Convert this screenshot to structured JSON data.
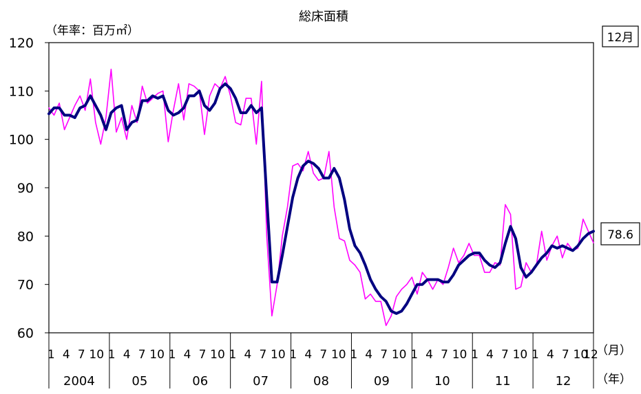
{
  "chart_data": {
    "type": "line",
    "title": "総床面積",
    "ylabel": "（年率：百万㎡）",
    "ylim": [
      60,
      120
    ],
    "y_ticks": [
      60,
      70,
      80,
      90,
      100,
      110,
      120
    ],
    "y_tick_labels": [
      "60",
      "70",
      "80",
      "90",
      "100",
      "110",
      "120"
    ],
    "month_ticks": [
      "1",
      "4",
      "7",
      "10"
    ],
    "final_month_label": "12",
    "month_axis_label": "（月）",
    "year_axis_label": "（年）",
    "years": [
      "2004",
      "05",
      "06",
      "07",
      "08",
      "09",
      "10",
      "11",
      "12"
    ],
    "month_badge": "12月",
    "last_value_label": "78.6",
    "series": [
      {
        "color": "#ff00ff",
        "values": [
          106.5,
          105.0,
          107.5,
          102.0,
          104.5,
          107.0,
          109.0,
          106.0,
          112.5,
          103.5,
          99.0,
          104.5,
          114.5,
          101.5,
          104.5,
          100.0,
          107.0,
          103.5,
          111.0,
          107.5,
          108.5,
          109.5,
          110.0,
          99.5,
          106.0,
          111.5,
          104.0,
          111.5,
          111.0,
          110.0,
          101.0,
          109.0,
          111.5,
          110.5,
          113.0,
          109.0,
          103.5,
          103.0,
          108.5,
          108.5,
          99.0,
          112.0,
          80.0,
          63.5,
          70.0,
          80.0,
          86.0,
          94.5,
          95.0,
          93.5,
          97.5,
          93.0,
          91.5,
          92.0,
          97.5,
          86.0,
          79.5,
          79.0,
          75.0,
          74.0,
          72.5,
          67.0,
          68.0,
          66.5,
          66.5,
          61.5,
          63.5,
          67.5,
          69.0,
          70.0,
          71.5,
          68.0,
          72.5,
          71.0,
          69.0,
          71.0,
          70.0,
          73.5,
          77.5,
          74.5,
          76.0,
          78.5,
          76.0,
          76.0,
          72.5,
          72.5,
          74.5,
          74.0,
          86.5,
          84.5,
          69.0,
          69.5,
          74.5,
          72.5,
          74.0,
          81.0,
          75.0,
          78.0,
          80.0,
          75.5,
          78.5,
          77.0,
          77.5,
          83.5,
          81.0,
          78.6
        ]
      },
      {
        "color": "#000080",
        "values": [
          105.3,
          106.5,
          106.5,
          105.0,
          105.0,
          104.5,
          106.5,
          107.0,
          109.0,
          107.0,
          105.0,
          102.0,
          105.5,
          106.5,
          107.0,
          102.0,
          103.5,
          104.0,
          108.0,
          108.0,
          109.0,
          108.5,
          109.0,
          106.0,
          105.0,
          105.5,
          106.5,
          109.0,
          109.0,
          110.0,
          107.0,
          106.0,
          107.5,
          110.5,
          111.5,
          110.5,
          108.5,
          105.5,
          105.5,
          107.0,
          105.5,
          106.5,
          88.0,
          70.5,
          70.5,
          76.0,
          82.0,
          88.0,
          92.0,
          94.5,
          95.5,
          95.0,
          94.0,
          92.0,
          92.0,
          94.0,
          92.0,
          87.5,
          81.5,
          78.0,
          76.5,
          74.0,
          71.0,
          69.0,
          67.5,
          66.5,
          64.5,
          64.0,
          64.5,
          66.0,
          68.0,
          70.0,
          70.0,
          71.0,
          71.0,
          71.0,
          70.5,
          70.5,
          72.0,
          74.0,
          75.0,
          76.0,
          76.5,
          76.5,
          75.0,
          74.0,
          73.5,
          74.5,
          78.5,
          82.0,
          79.5,
          73.5,
          71.5,
          72.5,
          74.0,
          75.5,
          76.5,
          78.0,
          77.5,
          78.0,
          77.5,
          77.0,
          78.0,
          79.5,
          80.5,
          81.0
        ]
      }
    ]
  }
}
